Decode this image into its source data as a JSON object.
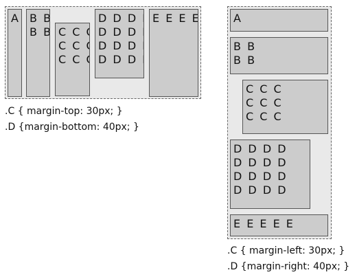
{
  "left_diagram": {
    "boxes": [
      {
        "id": "A",
        "lines": [
          "A"
        ]
      },
      {
        "id": "B",
        "lines": [
          "B B",
          "B B"
        ]
      },
      {
        "id": "C",
        "lines": [
          "C C C",
          "C C C",
          "C C C"
        ]
      },
      {
        "id": "D",
        "lines": [
          "D D D D",
          "D D D D",
          "D D D D",
          "D D D D"
        ]
      },
      {
        "id": "E",
        "lines": [
          "E E E E E"
        ]
      }
    ],
    "caption": [
      ".C { margin-top: 30px; }",
      ".D {margin-bottom: 40px; }"
    ]
  },
  "right_diagram": {
    "boxes": [
      {
        "id": "A",
        "lines": [
          "A"
        ]
      },
      {
        "id": "B",
        "lines": [
          "B B",
          "B B"
        ]
      },
      {
        "id": "C",
        "lines": [
          "C C C",
          "C C C",
          "C C C"
        ]
      },
      {
        "id": "D",
        "lines": [
          "D D D D",
          "D D D D",
          "D D D D",
          "D D D D"
        ]
      },
      {
        "id": "E",
        "lines": [
          "E E E E E"
        ]
      }
    ],
    "caption": [
      ".C { margin-left: 30px; }",
      ".D {margin-right: 40px; }"
    ]
  },
  "colors": {
    "frame_fill": "#e9e9e9",
    "box_fill": "#cccccc",
    "border": "#555555"
  }
}
